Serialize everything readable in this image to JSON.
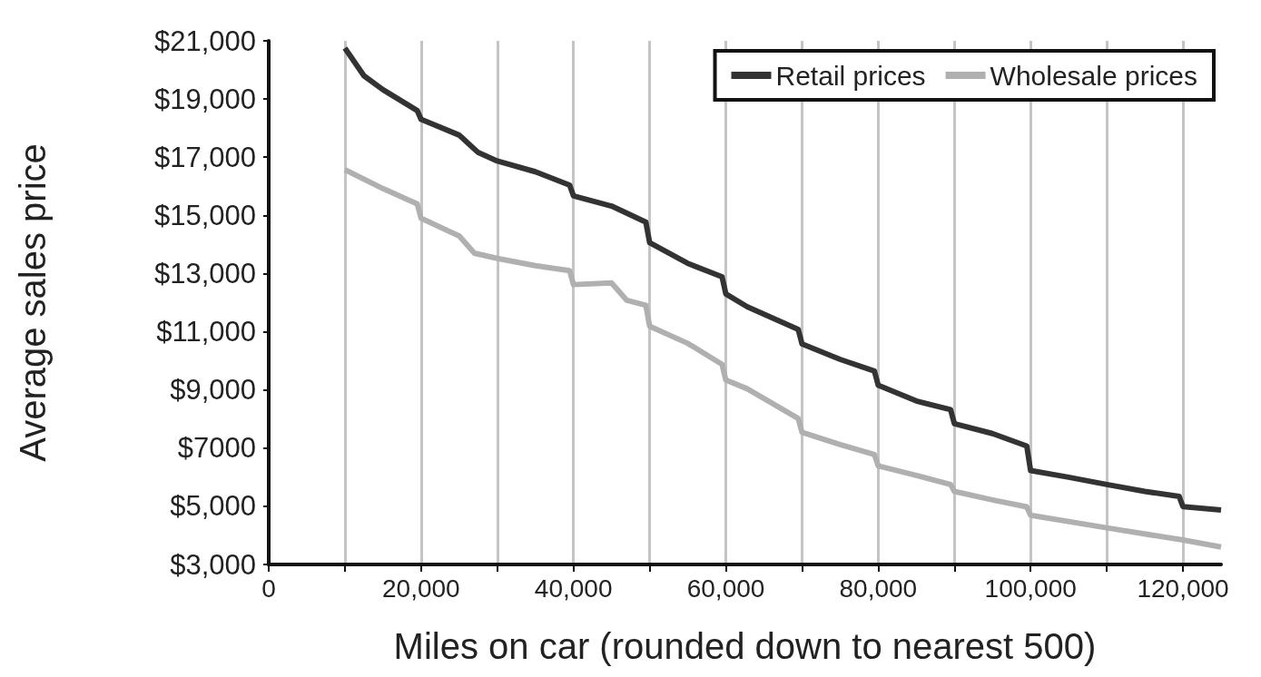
{
  "chart_data": {
    "type": "line",
    "xlabel": "Miles on car (rounded down to nearest 500)",
    "ylabel": "Average sales price",
    "xlim": [
      0,
      125000
    ],
    "xticks": [
      0,
      {
        "value": 10000,
        "label": null
      },
      {
        "value": 20000,
        "label": "20,000"
      },
      {
        "value": 30000,
        "label": null
      },
      {
        "value": 40000,
        "label": "40,000"
      },
      {
        "value": 50000,
        "label": null
      },
      {
        "value": 60000,
        "label": "60,000"
      },
      {
        "value": 70000,
        "label": null
      },
      {
        "value": 80000,
        "label": "80,000"
      },
      {
        "value": 90000,
        "label": null
      },
      {
        "value": 100000,
        "label": "100,000"
      },
      {
        "value": 110000,
        "label": null
      },
      {
        "value": 120000,
        "label": "120,000"
      }
    ],
    "ylim": [
      3000,
      21000
    ],
    "yticks": [
      {
        "value": 3000,
        "label": "$3,000"
      },
      {
        "value": 5000,
        "label": "$5,000"
      },
      {
        "value": 7000,
        "label": "$7000"
      },
      {
        "value": 9000,
        "label": "$9,000"
      },
      {
        "value": 11000,
        "label": "$11,000"
      },
      {
        "value": 13000,
        "label": "$13,000"
      },
      {
        "value": 15000,
        "label": "$15,000"
      },
      {
        "value": 17000,
        "label": "$17,000"
      },
      {
        "value": 19000,
        "label": "$19,000"
      },
      {
        "value": 21000,
        "label": "$21,000"
      }
    ],
    "grid": "x",
    "legend": "top right",
    "marker": "none",
    "line_style": "solid",
    "series": [
      {
        "name": "Retail prices",
        "color": "#333333",
        "x": [
          10000,
          12500,
          15000,
          19500,
          20000,
          25000,
          27500,
          30000,
          35000,
          39500,
          40000,
          45000,
          49500,
          50000,
          55000,
          59500,
          60000,
          62800,
          69500,
          70000,
          75000,
          79500,
          80000,
          85000,
          89500,
          90000,
          95000,
          99500,
          100000,
          105000,
          110000,
          115000,
          119500,
          120000,
          125000
        ],
        "values": [
          20750,
          19800,
          19320,
          18600,
          18300,
          17760,
          17160,
          16870,
          16500,
          16040,
          15670,
          15320,
          14770,
          14060,
          13350,
          12890,
          12300,
          11860,
          11080,
          10580,
          10050,
          9650,
          9160,
          8620,
          8320,
          7840,
          7500,
          7070,
          6230,
          6000,
          5750,
          5510,
          5340,
          4990,
          4870
        ]
      },
      {
        "name": "Wholesale prices",
        "color": "#b0b0b0",
        "x": [
          10000,
          15000,
          19500,
          20000,
          25000,
          27000,
          30000,
          35000,
          39500,
          40000,
          45000,
          47000,
          49500,
          50000,
          55000,
          59500,
          60000,
          62800,
          69500,
          70000,
          75000,
          79500,
          80000,
          85000,
          89500,
          90000,
          95000,
          99500,
          100000,
          110000,
          120000,
          125000
        ],
        "values": [
          16570,
          15920,
          15390,
          14900,
          14290,
          13700,
          13520,
          13270,
          13100,
          12620,
          12680,
          12080,
          11910,
          11190,
          10600,
          9880,
          9340,
          9040,
          8020,
          7540,
          7120,
          6780,
          6390,
          6060,
          5750,
          5510,
          5220,
          4980,
          4690,
          4260,
          3840,
          3600
        ]
      }
    ]
  }
}
